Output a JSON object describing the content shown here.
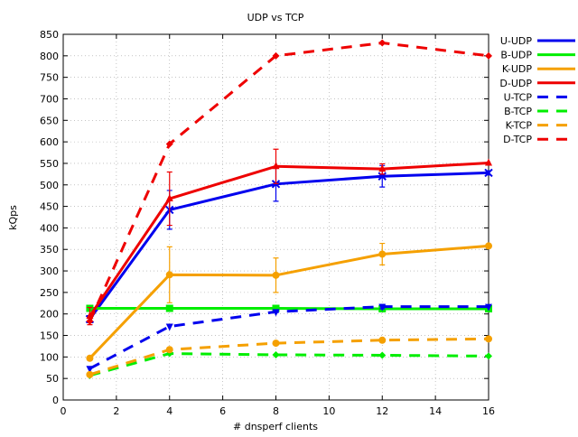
{
  "chart_data": {
    "type": "line",
    "title": "UDP vs TCP",
    "xlabel": "# dnsperf clients",
    "ylabel": "kQps",
    "xlim": [
      0,
      16
    ],
    "ylim": [
      0,
      850
    ],
    "x_ticks": [
      0,
      2,
      4,
      6,
      8,
      10,
      12,
      14,
      16
    ],
    "y_ticks": [
      0,
      50,
      100,
      150,
      200,
      250,
      300,
      350,
      400,
      450,
      500,
      550,
      600,
      650,
      700,
      750,
      800,
      850
    ],
    "x_tick_labels": [
      "0",
      "2",
      "4",
      "6",
      "8",
      "10",
      "12",
      "14",
      "16"
    ],
    "y_tick_labels": [
      "0",
      "50",
      "100",
      "150",
      "200",
      "250",
      "300",
      "350",
      "400",
      "450",
      "500",
      "550",
      "600",
      "650",
      "700",
      "750",
      "800",
      "850"
    ],
    "grid": true,
    "legend_position": "outside-right",
    "x": [
      1,
      4,
      8,
      12,
      16
    ],
    "series": [
      {
        "name": "U-UDP",
        "color": "#0000ee",
        "dash": "solid",
        "marker": "x",
        "values": [
          188,
          442,
          502,
          520,
          528
        ],
        "err": [
          8,
          45,
          40,
          25,
          5
        ]
      },
      {
        "name": "B-UDP",
        "color": "#00ee00",
        "dash": "solid",
        "marker": "square",
        "values": [
          213,
          213,
          213,
          212,
          212
        ],
        "err": [
          0,
          0,
          0,
          0,
          0
        ]
      },
      {
        "name": "K-UDP",
        "color": "#f5a000",
        "dash": "solid",
        "marker": "circle",
        "values": [
          97,
          291,
          290,
          339,
          358
        ],
        "err": [
          0,
          65,
          40,
          25,
          0
        ]
      },
      {
        "name": "D-UDP",
        "color": "#ee0000",
        "dash": "solid",
        "marker": "triangle",
        "values": [
          195,
          468,
          543,
          537,
          551
        ],
        "err": [
          20,
          62,
          40,
          12,
          0
        ]
      },
      {
        "name": "U-TCP",
        "color": "#0000ee",
        "dash": "dashed",
        "marker": "triangle-down",
        "values": [
          73,
          171,
          205,
          217,
          217
        ],
        "err": [
          0,
          0,
          0,
          5,
          0
        ]
      },
      {
        "name": "B-TCP",
        "color": "#00ee00",
        "dash": "dashed",
        "marker": "diamond",
        "values": [
          57,
          108,
          105,
          104,
          102
        ],
        "err": [
          0,
          0,
          0,
          0,
          0
        ]
      },
      {
        "name": "K-TCP",
        "color": "#f5a000",
        "dash": "dashed",
        "marker": "circle",
        "values": [
          59,
          117,
          132,
          139,
          142
        ],
        "err": [
          0,
          0,
          0,
          0,
          0
        ]
      },
      {
        "name": "D-TCP",
        "color": "#ee0000",
        "dash": "dashed",
        "marker": "diamond",
        "values": [
          183,
          595,
          800,
          830,
          800
        ],
        "err": [
          0,
          0,
          0,
          0,
          0
        ]
      }
    ]
  }
}
